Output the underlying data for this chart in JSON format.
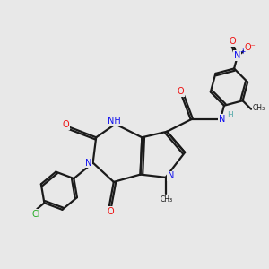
{
  "background_color": "#e8e8e8",
  "bond_color": "#1a1a1a",
  "bond_width": 1.6,
  "figsize": [
    3.0,
    3.0
  ],
  "dpi": 100,
  "colors": {
    "C": "#1a1a1a",
    "N": "#1010ee",
    "O": "#ee1010",
    "Cl": "#22aa22",
    "NH_color": "#5aacac"
  },
  "font_size": 7.0,
  "xlim": [
    0,
    10
  ],
  "ylim": [
    0,
    10
  ]
}
